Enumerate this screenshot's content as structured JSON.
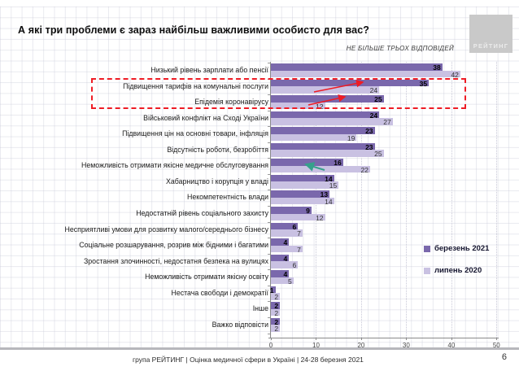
{
  "title": "А які три проблеми є зараз найбільш важливими особисто для вас?",
  "note": "НЕ БІЛЬШЕ ТРЬОХ ВІДПОВІДЕЙ",
  "logo_text": "РЕЙТИНГ",
  "colors": {
    "series_march_2021": "#7a68ac",
    "series_july_2020": "#c9c1e2",
    "highlight_box": "#ee1c25",
    "increase_arrow": "#ee1c25",
    "decrease_arrow": "#36a18b"
  },
  "legend": {
    "items": [
      {
        "label": "березень 2021",
        "color": "#7a68ac"
      },
      {
        "label": "липень 2020",
        "color": "#c9c1e2"
      }
    ]
  },
  "chart_data": {
    "type": "bar",
    "orientation": "horizontal",
    "title": "А які три проблеми є зараз найбільш важливими особисто для вас?",
    "subtitle": "НЕ БІЛЬШЕ ТРЬОХ ВІДПОВІДЕЙ",
    "categories": [
      "Низький рівень зарплати або пенсії",
      "Підвищення тарифів на комунальні послуги",
      "Епідемія коронавірусу",
      "Військовий конфлікт на Сході України",
      "Підвищення цін на основні товари, інфляція",
      "Відсутність роботи, безробіття",
      "Неможливість отримати якісне медичне обслуговування",
      "Хабарництво і корупція у владі",
      "Некомпетентність влади",
      "Недостатній рівень соціального захисту",
      "Несприятливі умови для розвитку малого/середнього бізнесу",
      "Соціальне розшарування, розрив між бідними і багатими",
      "Зростання злочинності, недостатня безпека на вулицях",
      "Неможливість отримати якісну освіту",
      "Нестача свободи і демократії",
      "Інше",
      "Важко відповісти"
    ],
    "series": [
      {
        "name": "березень 2021",
        "color": "#7a68ac",
        "values": [
          38,
          35,
          25,
          24,
          23,
          23,
          16,
          14,
          13,
          9,
          6,
          4,
          4,
          4,
          1,
          2,
          2
        ]
      },
      {
        "name": "липень 2020",
        "color": "#c9c1e2",
        "values": [
          42,
          24,
          12,
          27,
          19,
          25,
          22,
          15,
          14,
          12,
          7,
          7,
          6,
          5,
          2,
          2,
          2
        ]
      }
    ],
    "xlim": [
      0,
      50
    ],
    "xticks": [
      0,
      10,
      20,
      30,
      40,
      50
    ],
    "grid": "on",
    "legend_position": "right-middle",
    "highlighted_categories": [
      "Підвищення тарифів на комунальні послуги",
      "Епідемія коронавірусу"
    ],
    "annotations": [
      {
        "type": "increase-arrow",
        "category": "Підвищення тарифів на комунальні послуги",
        "from_value": 24,
        "to_value": 35
      },
      {
        "type": "increase-arrow",
        "category": "Епідемія коронавірусу",
        "from_value": 12,
        "to_value": 25
      },
      {
        "type": "decrease-arrow",
        "category": "Неможливість отримати якісне медичне обслуговування",
        "from_value": 22,
        "to_value": 16
      }
    ]
  },
  "footer": {
    "source": "група РЕЙТИНГ | Оцінка медичної сфери в Україні | 24-28 березня 2021",
    "page": "6"
  }
}
